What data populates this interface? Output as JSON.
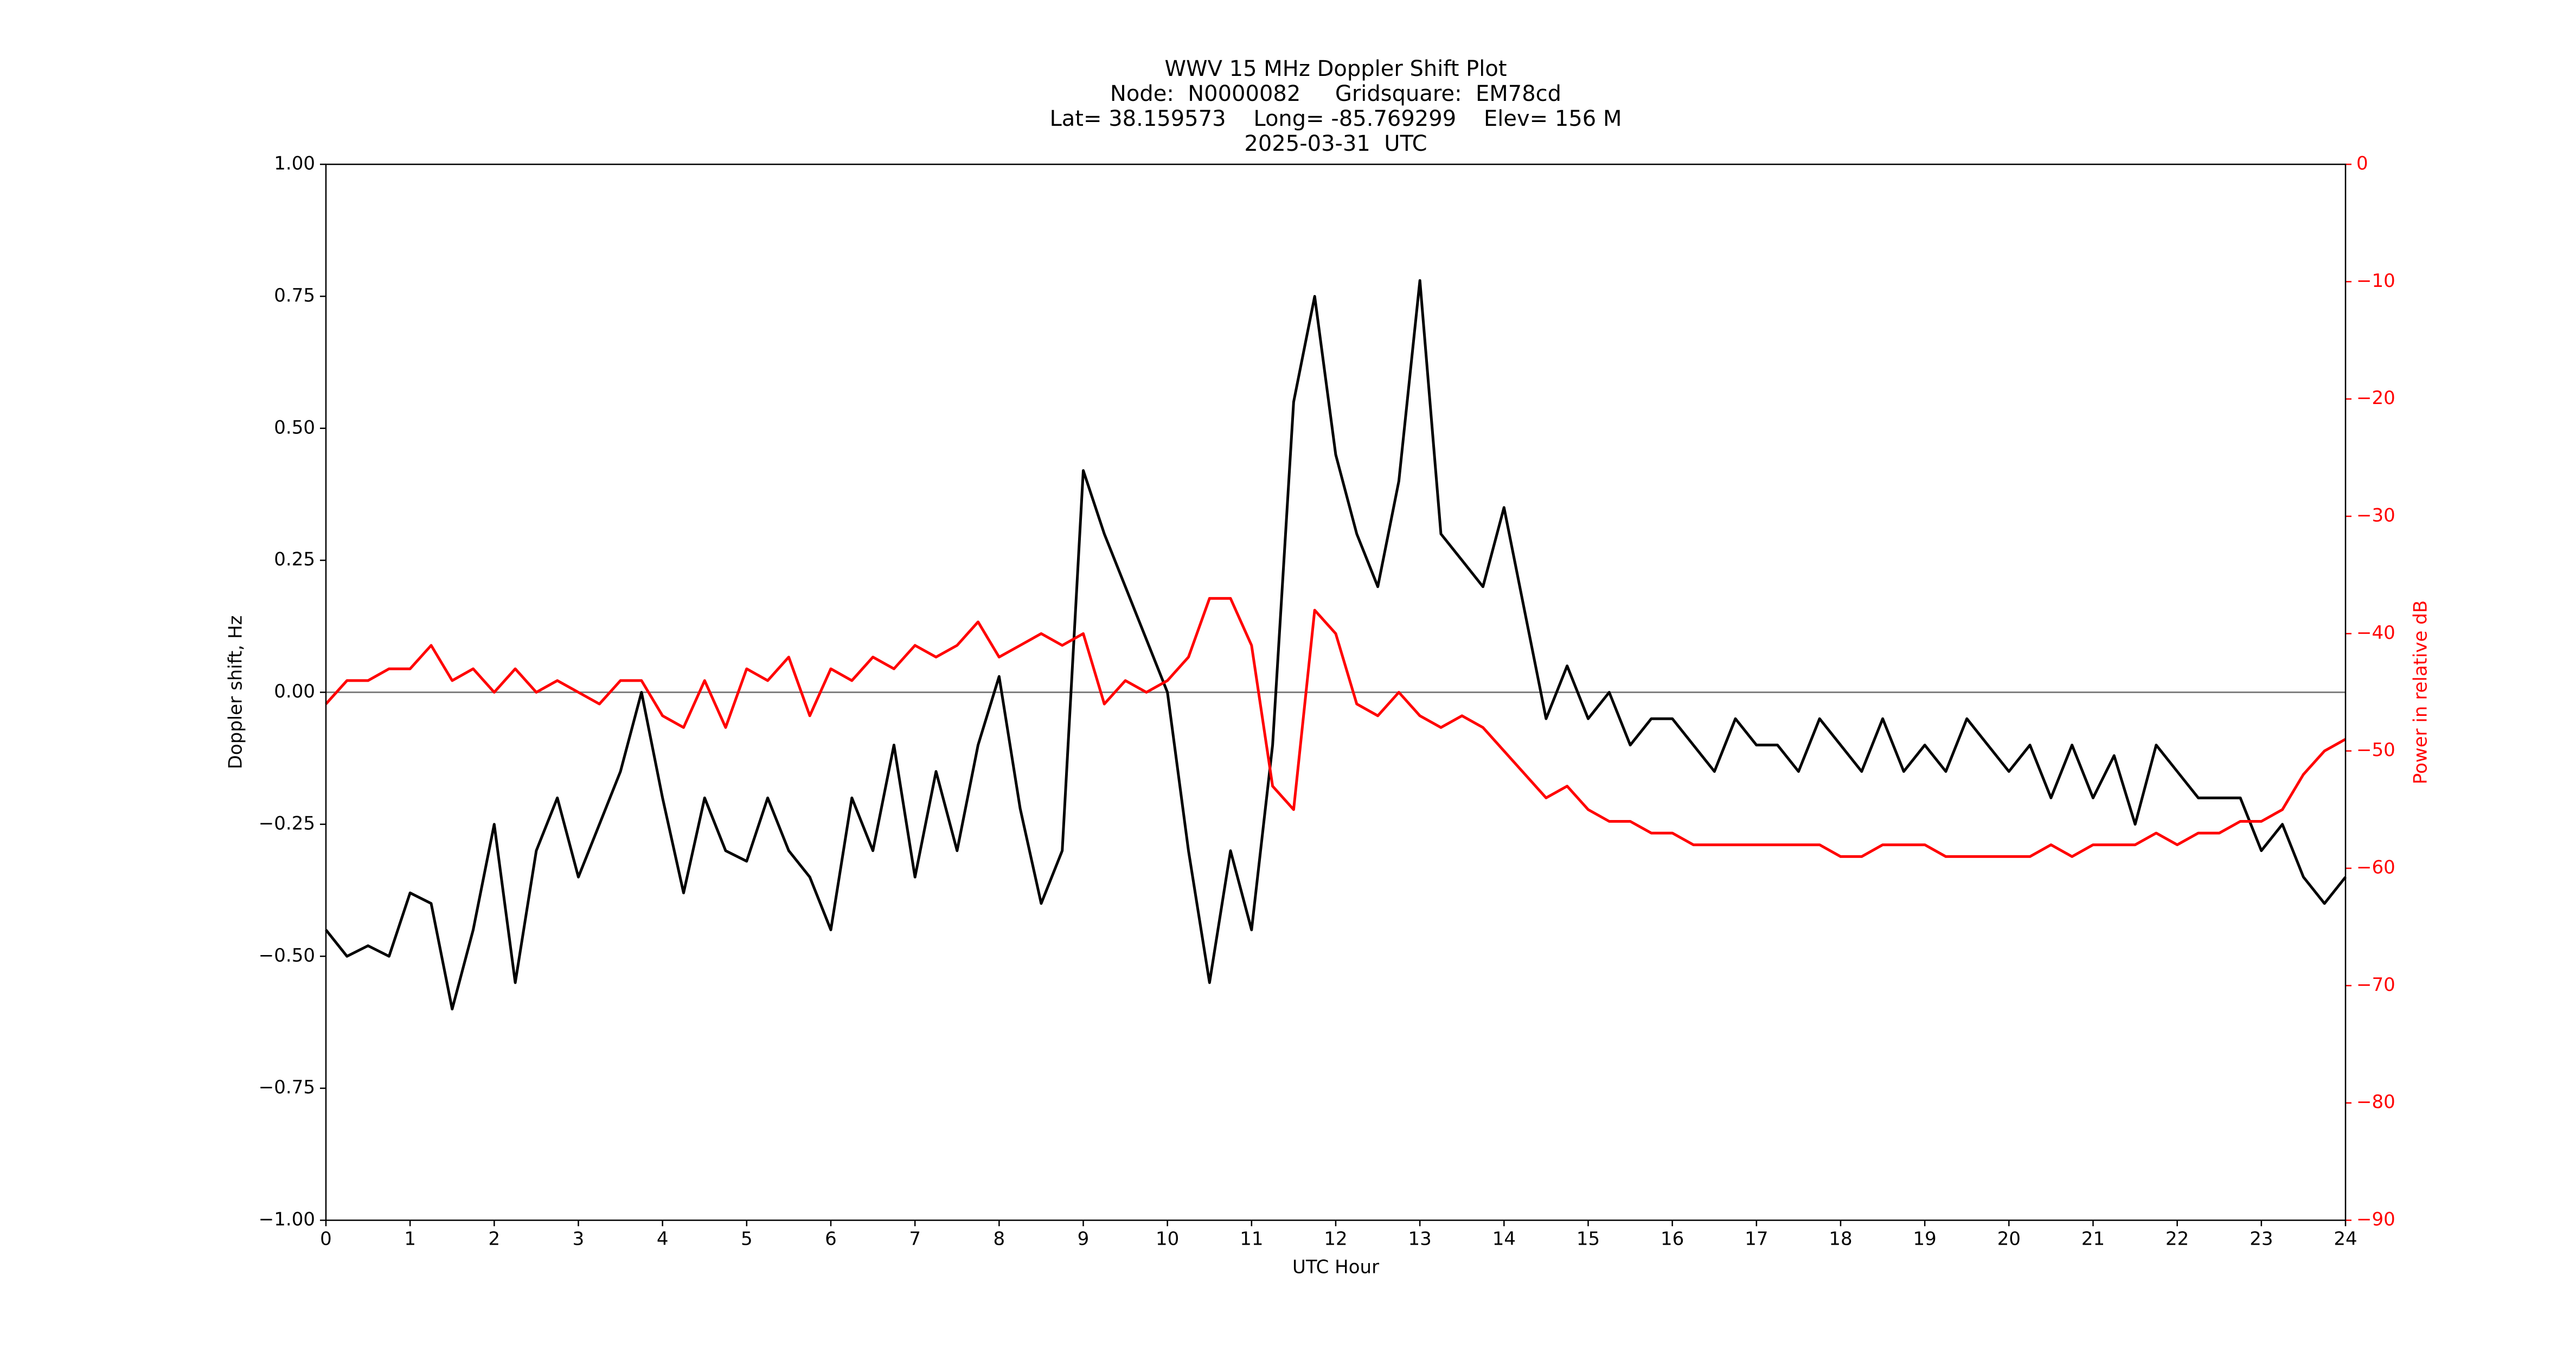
{
  "chart_data": {
    "type": "line",
    "title": [
      "WWV 15 MHz Doppler Shift Plot",
      "Node:  N0000082     Gridsquare:  EM78cd",
      "Lat= 38.159573    Long= -85.769299    Elev= 156 M",
      "2025-03-31  UTC"
    ],
    "xlabel": "UTC Hour",
    "ylabel": "Doppler shift, Hz",
    "y2label": "Power in relative dB",
    "x": [
      0,
      0.25,
      0.5,
      0.75,
      1,
      1.25,
      1.5,
      1.75,
      2,
      2.25,
      2.5,
      2.75,
      3,
      3.25,
      3.5,
      3.75,
      4,
      4.25,
      4.5,
      4.75,
      5,
      5.25,
      5.5,
      5.75,
      6,
      6.25,
      6.5,
      6.75,
      7,
      7.25,
      7.5,
      7.75,
      8,
      8.25,
      8.5,
      8.75,
      9,
      9.25,
      9.5,
      9.75,
      10,
      10.25,
      10.5,
      10.75,
      11,
      11.25,
      11.5,
      11.75,
      12,
      12.25,
      12.5,
      12.75,
      13,
      13.25,
      13.5,
      13.75,
      14,
      14.25,
      14.5,
      14.75,
      15,
      15.25,
      15.5,
      15.75,
      16,
      16.25,
      16.5,
      16.75,
      17,
      17.25,
      17.5,
      17.75,
      18,
      18.25,
      18.5,
      18.75,
      19,
      19.25,
      19.5,
      19.75,
      20,
      20.25,
      20.5,
      20.75,
      21,
      21.25,
      21.5,
      21.75,
      22,
      22.25,
      22.5,
      22.75,
      23,
      23.25,
      23.5,
      23.75,
      24
    ],
    "series": [
      {
        "name": "Doppler shift",
        "color": "#000000",
        "values": [
          -0.45,
          -0.5,
          -0.48,
          -0.5,
          -0.38,
          -0.4,
          -0.6,
          -0.45,
          -0.25,
          -0.55,
          -0.3,
          -0.2,
          -0.35,
          -0.25,
          -0.15,
          0.0,
          -0.2,
          -0.38,
          -0.2,
          -0.3,
          -0.32,
          -0.2,
          -0.3,
          -0.35,
          -0.45,
          -0.2,
          -0.3,
          -0.1,
          -0.35,
          -0.15,
          -0.3,
          -0.1,
          0.03,
          -0.22,
          -0.4,
          -0.3,
          0.42,
          0.3,
          0.2,
          0.1,
          0.0,
          -0.3,
          -0.55,
          -0.3,
          -0.45,
          -0.1,
          0.55,
          0.75,
          0.45,
          0.3,
          0.2,
          0.4,
          0.78,
          0.3,
          0.25,
          0.2,
          0.35,
          0.15,
          -0.05,
          0.05,
          -0.05,
          0.0,
          -0.1,
          -0.05,
          -0.05,
          -0.1,
          -0.15,
          -0.05,
          -0.1,
          -0.1,
          -0.15,
          -0.05,
          -0.1,
          -0.15,
          -0.05,
          -0.15,
          -0.1,
          -0.15,
          -0.05,
          -0.1,
          -0.15,
          -0.1,
          -0.2,
          -0.1,
          -0.2,
          -0.12,
          -0.25,
          -0.1,
          -0.15,
          -0.2,
          -0.2,
          -0.2,
          -0.3,
          -0.25,
          -0.35,
          -0.4,
          -0.35
        ]
      },
      {
        "name": "Power",
        "color": "#ff0000",
        "axis": "y2",
        "values": [
          -46,
          -44,
          -44,
          -43,
          -43,
          -41,
          -44,
          -43,
          -45,
          -43,
          -45,
          -44,
          -45,
          -46,
          -44,
          -44,
          -47,
          -48,
          -44,
          -48,
          -43,
          -44,
          -42,
          -47,
          -43,
          -44,
          -42,
          -43,
          -41,
          -42,
          -41,
          -39,
          -42,
          -41,
          -40,
          -41,
          -40,
          -46,
          -44,
          -45,
          -44,
          -42,
          -37,
          -37,
          -41,
          -53,
          -55,
          -38,
          -40,
          -46,
          -47,
          -45,
          -47,
          -48,
          -47,
          -48,
          -50,
          -52,
          -54,
          -53,
          -55,
          -56,
          -56,
          -57,
          -57,
          -58,
          -58,
          -58,
          -58,
          -58,
          -58,
          -58,
          -59,
          -59,
          -58,
          -58,
          -58,
          -59,
          -59,
          -59,
          -59,
          -59,
          -58,
          -59,
          -58,
          -58,
          -58,
          -57,
          -58,
          -57,
          -57,
          -56,
          -56,
          -55,
          -52,
          -50,
          -49
        ]
      }
    ],
    "hline": 0,
    "xlim": [
      0,
      24
    ],
    "xticks": [
      0,
      1,
      2,
      3,
      4,
      5,
      6,
      7,
      8,
      9,
      10,
      11,
      12,
      13,
      14,
      15,
      16,
      17,
      18,
      19,
      20,
      21,
      22,
      23,
      24
    ],
    "ylim": [
      -1,
      1
    ],
    "yticks": [
      {
        "value": -1,
        "label": "−1.00"
      },
      {
        "value": -0.75,
        "label": "−0.75"
      },
      {
        "value": -0.5,
        "label": "−0.50"
      },
      {
        "value": -0.25,
        "label": "−0.25"
      },
      {
        "value": 0,
        "label": "0.00"
      },
      {
        "value": 0.25,
        "label": "0.25"
      },
      {
        "value": 0.5,
        "label": "0.50"
      },
      {
        "value": 0.75,
        "label": "0.75"
      },
      {
        "value": 1,
        "label": "1.00"
      }
    ],
    "y2lim": [
      -90,
      0
    ],
    "y2ticks": [
      {
        "value": -90,
        "label": "−90"
      },
      {
        "value": -80,
        "label": "−80"
      },
      {
        "value": -70,
        "label": "−70"
      },
      {
        "value": -60,
        "label": "−60"
      },
      {
        "value": -50,
        "label": "−50"
      },
      {
        "value": -40,
        "label": "−40"
      },
      {
        "value": -30,
        "label": "−30"
      },
      {
        "value": -20,
        "label": "−20"
      },
      {
        "value": -10,
        "label": "−10"
      },
      0
    ],
    "y2color": "#ff0000"
  }
}
